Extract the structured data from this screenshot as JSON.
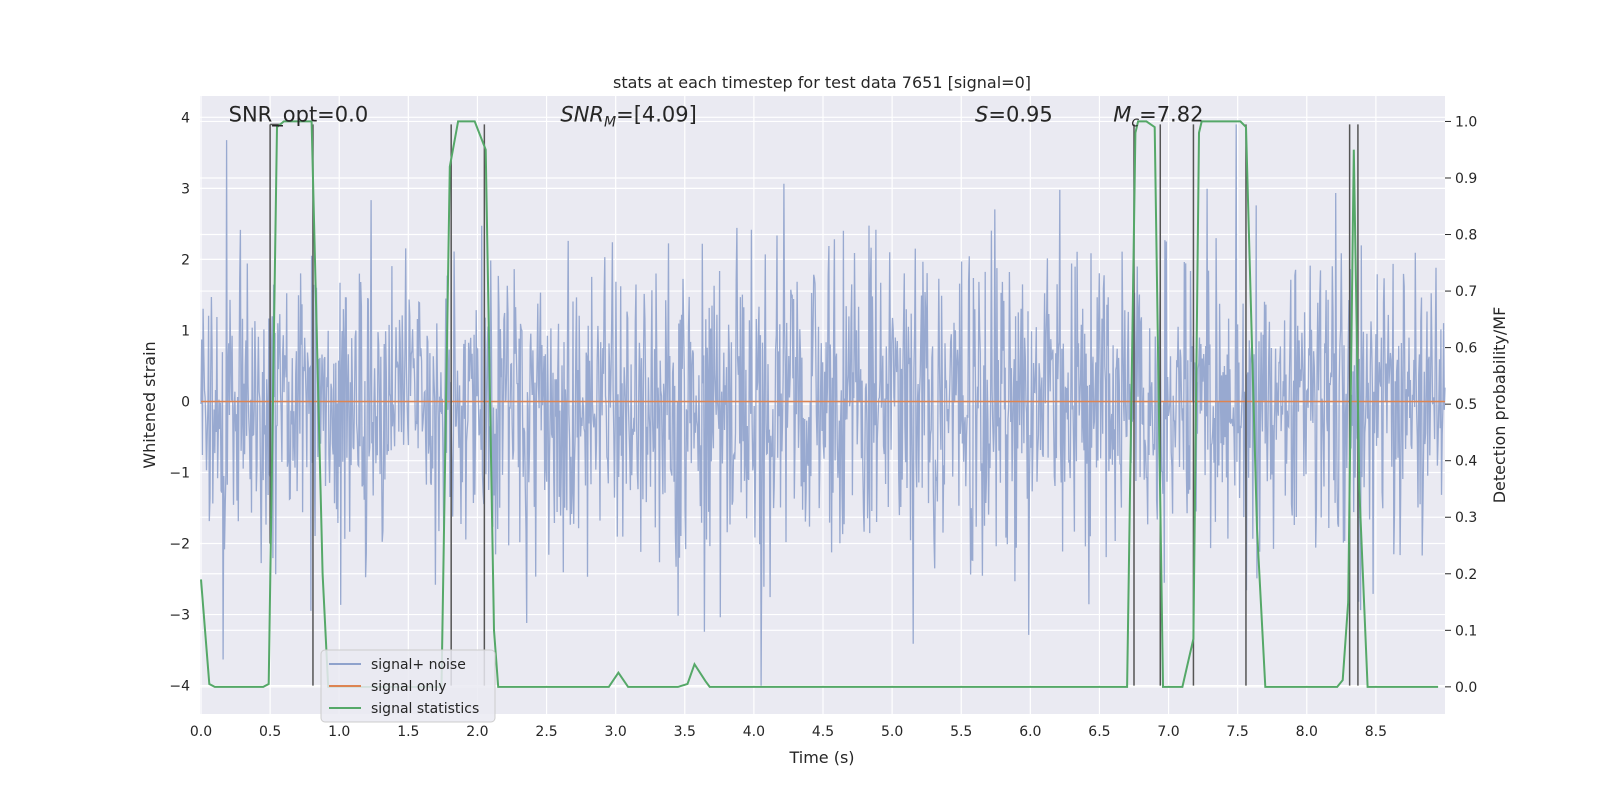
{
  "chart_data": {
    "type": "line",
    "title": "stats at each timestep for test data 7651 [signal=0]",
    "xlabel": "Time (s)",
    "ylabel": "Whitened strain",
    "ylabel_right": "Detection probability/MF",
    "xlim": [
      0.0,
      9.0
    ],
    "ylim_left": [
      -4.4,
      4.3
    ],
    "ylim_right": [
      -0.048,
      1.045
    ],
    "x_ticks": [
      "0.0",
      "0.5",
      "1.0",
      "1.5",
      "2.0",
      "2.5",
      "3.0",
      "3.5",
      "4.0",
      "4.5",
      "5.0",
      "5.5",
      "6.0",
      "6.5",
      "7.0",
      "7.5",
      "8.0",
      "8.5"
    ],
    "y_ticks_left": [
      "4",
      "3",
      "2",
      "1",
      "0",
      "−1",
      "−2",
      "−3",
      "−4"
    ],
    "y_ticks_right": [
      "1.0",
      "0.9",
      "0.8",
      "0.7",
      "0.6",
      "0.5",
      "0.4",
      "0.3",
      "0.2",
      "0.1",
      "0.0"
    ],
    "grid": true,
    "legend_position": "lower-left",
    "annotations": [
      {
        "text": "SNR_opt=0.0",
        "x": 0.2,
        "y": 4.0
      },
      {
        "text": "SNR_MF=[4.09]",
        "x": 2.6,
        "y": 4.0
      },
      {
        "text": "S=0.95",
        "x": 5.6,
        "y": 4.0
      },
      {
        "text": "M_c=7.82",
        "x": 6.6,
        "y": 4.0
      }
    ],
    "series": [
      {
        "name": "signal+ noise",
        "color": "#8fa2cc",
        "description_values": "whitened strain noise, approx. N(0,1) with extremes near +3.9 and -4.0",
        "seed": 7651,
        "n_points": 1800
      },
      {
        "name": "signal only",
        "color": "#dd8452",
        "x": [
          0.0,
          9.0
        ],
        "y": [
          0.0,
          0.0
        ]
      },
      {
        "name": "signal statistics",
        "color": "#55a868",
        "x": [
          0.0,
          0.06,
          0.1,
          0.45,
          0.49,
          0.55,
          0.6,
          0.8,
          0.88,
          0.92,
          1.74,
          1.8,
          1.86,
          1.98,
          2.06,
          2.12,
          2.15,
          2.95,
          3.02,
          3.09,
          3.1,
          3.45,
          3.52,
          3.57,
          3.65,
          3.68,
          6.7,
          6.76,
          6.78,
          6.84,
          6.9,
          6.96,
          7.0,
          7.1,
          7.18,
          7.22,
          7.24,
          7.52,
          7.56,
          7.64,
          7.7,
          8.22,
          8.26,
          8.3,
          8.34,
          8.38,
          8.44,
          8.5,
          8.95
        ],
        "y": [
          0.19,
          0.005,
          0.0,
          0.0,
          0.005,
          0.99,
          1.0,
          1.0,
          0.2,
          0.0,
          0.0,
          0.92,
          1.0,
          1.0,
          0.95,
          0.1,
          0.0,
          0.0,
          0.025,
          0.0,
          0.0,
          0.0,
          0.005,
          0.04,
          0.01,
          0.0,
          0.0,
          0.98,
          1.0,
          1.0,
          0.99,
          0.0,
          0.0,
          0.0,
          0.085,
          0.98,
          1.0,
          1.0,
          0.99,
          0.28,
          0.0,
          0.0,
          0.012,
          0.15,
          0.95,
          0.35,
          0.0,
          0.0,
          0.0
        ]
      }
    ],
    "vertical_lines": [
      {
        "x": 0.5,
        "ymin": -2.0,
        "ymax": 3.9
      },
      {
        "x": 0.81,
        "ymin": -4.0,
        "ymax": 3.9
      },
      {
        "x": 1.81,
        "ymin": -4.0,
        "ymax": 3.9
      },
      {
        "x": 2.05,
        "ymin": -4.0,
        "ymax": 3.9
      },
      {
        "x": 6.75,
        "ymin": -4.0,
        "ymax": 3.9
      },
      {
        "x": 6.94,
        "ymin": -4.0,
        "ymax": 3.9
      },
      {
        "x": 7.18,
        "ymin": -4.0,
        "ymax": 3.9
      },
      {
        "x": 7.56,
        "ymin": -4.0,
        "ymax": 3.9
      },
      {
        "x": 8.31,
        "ymin": -4.0,
        "ymax": 3.9
      },
      {
        "x": 8.37,
        "ymin": -4.0,
        "ymax": 3.9
      }
    ],
    "colors": {
      "plot_bg": "#eaeaf2",
      "grid": "#ffffff",
      "vline": "#555555"
    }
  }
}
